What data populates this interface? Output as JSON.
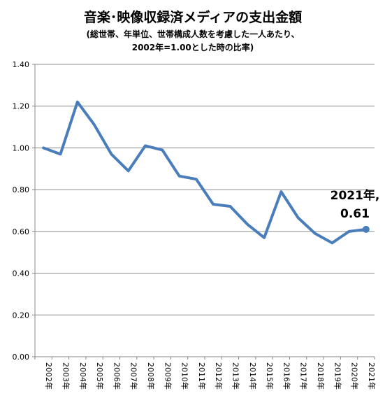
{
  "chart_data": {
    "type": "line",
    "title": "音楽･映像収録済メディアの支出金額",
    "subtitle_lines": [
      "(総世帯、年単位、世帯構成人数を考慮した一人あたり、",
      "2002年=1.00とした時の比率)"
    ],
    "categories": [
      "2002年",
      "2003年",
      "2004年",
      "2005年",
      "2006年",
      "2007年",
      "2008年",
      "2009年",
      "2010年",
      "2011年",
      "2012年",
      "2013年",
      "2014年",
      "2015年",
      "2016年",
      "2017年",
      "2018年",
      "2019年",
      "2020年",
      "2021年"
    ],
    "values": [
      1.0,
      0.97,
      1.22,
      1.11,
      0.97,
      0.89,
      1.01,
      0.99,
      0.865,
      0.85,
      0.73,
      0.72,
      0.635,
      0.57,
      0.79,
      0.665,
      0.59,
      0.545,
      0.6,
      0.61
    ],
    "ylim": [
      0,
      1.4
    ],
    "yticks": [
      "0.00",
      "0.20",
      "0.40",
      "0.60",
      "0.80",
      "1.00",
      "1.20",
      "1.40"
    ],
    "grid": true,
    "callout": {
      "line1": "2021年,",
      "line2": "0.61"
    },
    "colors": {
      "line": "#4a7ebb",
      "grid": "#8c8c8c",
      "axis": "#888888"
    }
  }
}
